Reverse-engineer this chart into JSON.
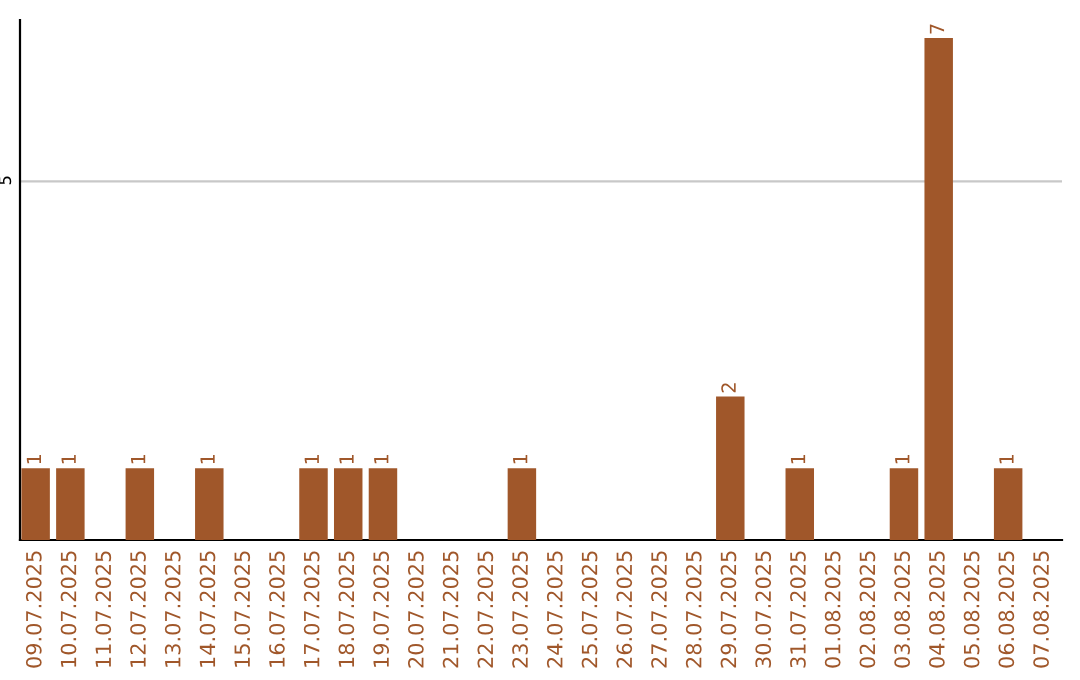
{
  "chart_data": {
    "type": "bar",
    "categories": [
      "09.07.2025",
      "10.07.2025",
      "11.07.2025",
      "12.07.2025",
      "13.07.2025",
      "14.07.2025",
      "15.07.2025",
      "16.07.2025",
      "17.07.2025",
      "18.07.2025",
      "19.07.2025",
      "20.07.2025",
      "21.07.2025",
      "22.07.2025",
      "23.07.2025",
      "24.07.2025",
      "25.07.2025",
      "26.07.2025",
      "27.07.2025",
      "28.07.2025",
      "29.07.2025",
      "30.07.2025",
      "31.07.2025",
      "01.08.2025",
      "02.08.2025",
      "03.08.2025",
      "04.08.2025",
      "05.08.2025",
      "06.08.2025",
      "07.08.2025"
    ],
    "values": [
      1,
      1,
      0,
      1,
      0,
      1,
      0,
      0,
      1,
      1,
      1,
      0,
      0,
      0,
      1,
      0,
      0,
      0,
      0,
      0,
      2,
      0,
      1,
      0,
      0,
      1,
      7,
      0,
      1,
      0
    ],
    "value_labels": [
      "1",
      "1",
      null,
      "1",
      null,
      "1",
      null,
      null,
      "1",
      "1",
      "1",
      null,
      null,
      null,
      "1",
      null,
      null,
      null,
      null,
      null,
      "2",
      null,
      "1",
      null,
      null,
      "1",
      "7",
      null,
      "1",
      null
    ],
    "color": "#a0572a",
    "ylim": [
      0,
      7.25
    ],
    "yticks": [
      5
    ],
    "grid": "y"
  }
}
